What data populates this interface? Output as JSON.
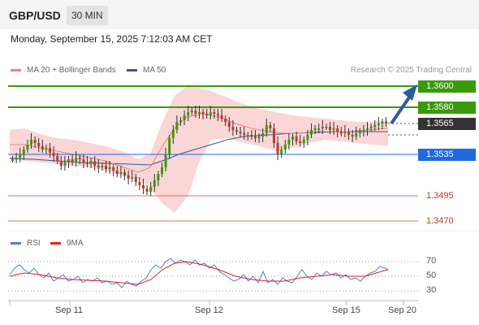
{
  "header": {
    "pair": "GBP/USD",
    "timeframe": "30 MIN"
  },
  "timestamp": "Monday, September 15, 2025 7:12:03 AM CET",
  "legend": [
    {
      "label": "MA 20 + Bollinger Bands",
      "color": "#f08080"
    },
    {
      "label": "MA 50",
      "color": "#2c5aa0"
    }
  ],
  "credit": "Research © 2025 Trading Central",
  "levels": [
    {
      "value": "1.3600",
      "style": "green-box",
      "color": "#3a9a0c"
    },
    {
      "value": "1.3580",
      "style": "green-box",
      "color": "#3a9a0c"
    },
    {
      "value": "1.3565",
      "style": "dark-box",
      "color": "#333333"
    },
    {
      "value": "1.3535",
      "style": "blue-box",
      "color": "#1f6ae0"
    },
    {
      "value": "1.3495",
      "style": "red-text",
      "color": "#c0392b"
    },
    {
      "value": "1.3470",
      "style": "red-text",
      "color": "#c0392b"
    }
  ],
  "rsi_legend": [
    {
      "label": "RSI",
      "color": "#4a7fe0"
    },
    {
      "label": "9MA",
      "color": "#e02020"
    }
  ],
  "rsi_ticks": [
    "70",
    "50",
    "30"
  ],
  "x_labels": [
    "Sep 11",
    "Sep 12",
    "Sep 15",
    "Sep 20"
  ],
  "colors": {
    "up": "#3a9a0c",
    "down": "#c0392b",
    "band": "#f8c8c8"
  }
}
